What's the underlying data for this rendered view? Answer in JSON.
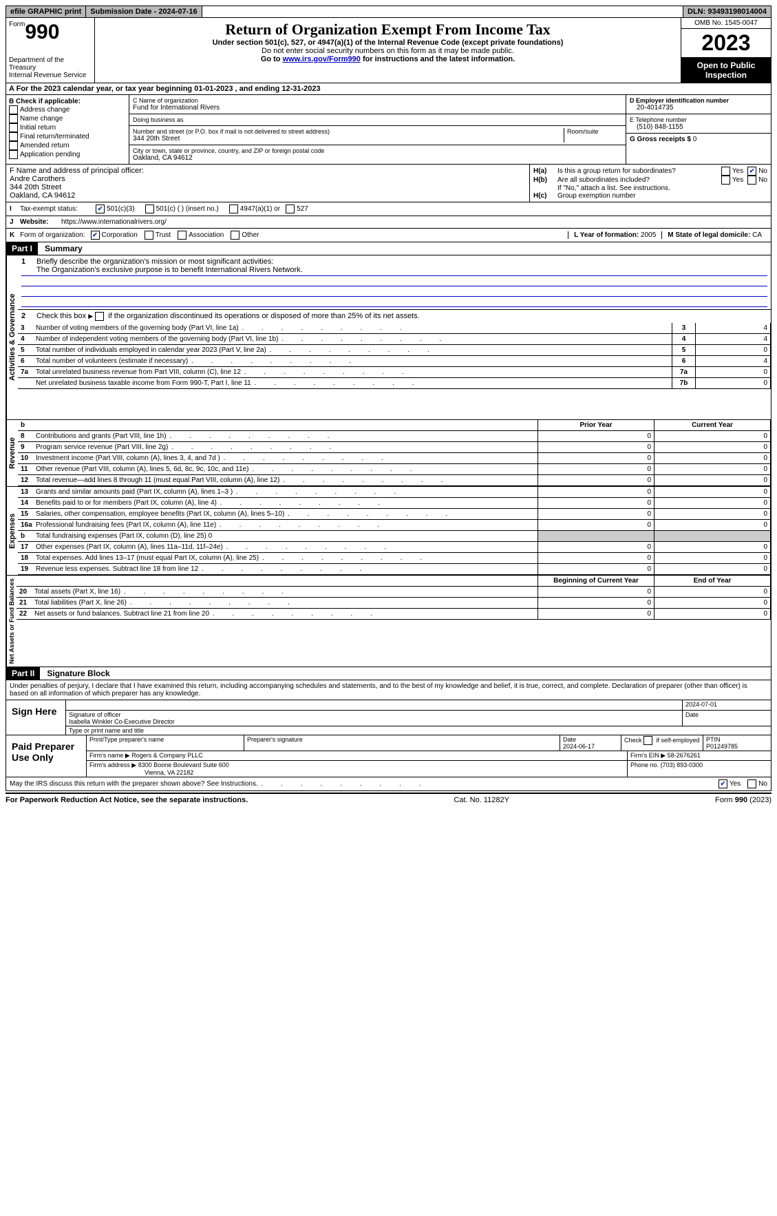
{
  "topbar": {
    "efile": "efile GRAPHIC print",
    "submission_label": "Submission Date - 2024-07-16",
    "dln_label": "DLN: 93493198014004"
  },
  "header": {
    "form_prefix": "Form",
    "form_number": "990",
    "dept": "Department of the Treasury\nInternal Revenue Service",
    "title": "Return of Organization Exempt From Income Tax",
    "sub1": "Under section 501(c), 527, or 4947(a)(1) of the Internal Revenue Code (except private foundations)",
    "sub2": "Do not enter social security numbers on this form as it may be made public.",
    "sub3_pre": "Go to ",
    "sub3_link": "www.irs.gov/Form990",
    "sub3_post": " for instructions and the latest information.",
    "omb": "OMB No. 1545-0047",
    "year": "2023",
    "open_public": "Open to Public Inspection"
  },
  "rowA": {
    "text_pre": "A   For the 2023 calendar year, or tax year beginning ",
    "begin": "01-01-2023",
    "mid": "   , and ending ",
    "end": "12-31-2023"
  },
  "boxB": {
    "header": "B Check if applicable:",
    "items": [
      "Address change",
      "Name change",
      "Initial return",
      "Final return/terminated",
      "Amended return",
      "Application pending"
    ]
  },
  "boxC": {
    "name_label": "C Name of organization",
    "org_name": "Fund for International Rivers",
    "dba_label": "Doing business as",
    "dba": "",
    "addr_label": "Number and street (or P.O. box if mail is not delivered to street address)",
    "room_label": "Room/suite",
    "addr": "344 20th Street",
    "city_label": "City or town, state or province, country, and ZIP or foreign postal code",
    "city": "Oakland, CA  94612"
  },
  "boxD": {
    "label": "D Employer identification number",
    "ein": "20-4014735"
  },
  "boxE": {
    "label": "E Telephone number",
    "phone": "(510) 848-1155"
  },
  "boxG": {
    "label": "G Gross receipts $ ",
    "val": "0"
  },
  "boxF": {
    "label": "F  Name and address of principal officer:",
    "name": "Andre Carothers",
    "addr1": "344 20th Street",
    "addr2": "Oakland, CA  94612"
  },
  "boxH": {
    "a": "Is this a group return for subordinates?",
    "b": "Are all subordinates included?",
    "b_note": "If \"No,\" attach a list. See instructions.",
    "c": "Group exemption number",
    "yes": "Yes",
    "no": "No",
    "Ha_pre": "H(a)",
    "Hb_pre": "H(b)",
    "Hc_pre": "H(c)"
  },
  "taxexempt": {
    "label_I": "I",
    "label": "Tax-exempt status:",
    "c3": "501(c)(3)",
    "c_other": "501(c) (   ) (insert no.)",
    "c4947": "4947(a)(1) or",
    "c527": "527"
  },
  "website": {
    "label_J": "J",
    "label": "Website:",
    "url": "https://www.internationalrivers.org/"
  },
  "orgform": {
    "label_K": "K",
    "label": "Form of organization:",
    "corp": "Corporation",
    "trust": "Trust",
    "assoc": "Association",
    "other": "Other",
    "L": "L Year of formation: ",
    "L_val": "2005",
    "M": "M State of legal domicile: ",
    "M_val": "CA"
  },
  "part1": {
    "num": "Part I",
    "title": "Summary",
    "vlabels": {
      "gov": "Activities & Governance",
      "rev": "Revenue",
      "exp": "Expenses",
      "net": "Net Assets or Fund Balances"
    },
    "line1": "Briefly describe the organization's mission or most significant activities:",
    "mission": "The Organization's exclusive purpose is to benefit International Rivers Network.",
    "line2": "Check this box           if the organization discontinued its operations or disposed of more than 25% of its net assets.",
    "rows_gov": [
      {
        "n": "3",
        "t": "Number of voting members of the governing body (Part VI, line 1a)",
        "k": "3",
        "v": "4"
      },
      {
        "n": "4",
        "t": "Number of independent voting members of the governing body (Part VI, line 1b)",
        "k": "4",
        "v": "4"
      },
      {
        "n": "5",
        "t": "Total number of individuals employed in calendar year 2023 (Part V, line 2a)",
        "k": "5",
        "v": "0"
      },
      {
        "n": "6",
        "t": "Total number of volunteers (estimate if necessary)",
        "k": "6",
        "v": "4"
      },
      {
        "n": "7a",
        "t": "Total unrelated business revenue from Part VIII, column (C), line 12",
        "k": "7a",
        "v": "0"
      },
      {
        "n": "",
        "t": "Net unrelated business taxable income from Form 990-T, Part I, line 11",
        "k": "7b",
        "v": "0"
      }
    ],
    "hdr_prior": "Prior Year",
    "hdr_curr": "Current Year",
    "rows_rev": [
      {
        "n": "8",
        "t": "Contributions and grants (Part VIII, line 1h)",
        "p": "0",
        "c": "0"
      },
      {
        "n": "9",
        "t": "Program service revenue (Part VIII, line 2g)",
        "p": "0",
        "c": "0"
      },
      {
        "n": "10",
        "t": "Investment income (Part VIII, column (A), lines 3, 4, and 7d )",
        "p": "0",
        "c": "0"
      },
      {
        "n": "11",
        "t": "Other revenue (Part VIII, column (A), lines 5, 6d, 8c, 9c, 10c, and 11e)",
        "p": "0",
        "c": "0"
      },
      {
        "n": "12",
        "t": "Total revenue—add lines 8 through 11 (must equal Part VIII, column (A), line 12)",
        "p": "0",
        "c": "0"
      }
    ],
    "rows_exp": [
      {
        "n": "13",
        "t": "Grants and similar amounts paid (Part IX, column (A), lines 1–3 )",
        "p": "0",
        "c": "0"
      },
      {
        "n": "14",
        "t": "Benefits paid to or for members (Part IX, column (A), line 4)",
        "p": "0",
        "c": "0"
      },
      {
        "n": "15",
        "t": "Salaries, other compensation, employee benefits (Part IX, column (A), lines 5–10)",
        "p": "0",
        "c": "0"
      },
      {
        "n": "16a",
        "t": "Professional fundraising fees (Part IX, column (A), line 11e)",
        "p": "0",
        "c": "0"
      },
      {
        "n": "b",
        "t": "Total fundraising expenses (Part IX, column (D), line 25) 0",
        "p": "",
        "c": "",
        "shade": true
      },
      {
        "n": "17",
        "t": "Other expenses (Part IX, column (A), lines 11a–11d, 11f–24e)",
        "p": "0",
        "c": "0"
      },
      {
        "n": "18",
        "t": "Total expenses. Add lines 13–17 (must equal Part IX, column (A), line 25)",
        "p": "0",
        "c": "0"
      },
      {
        "n": "19",
        "t": "Revenue less expenses. Subtract line 18 from line 12",
        "p": "0",
        "c": "0"
      }
    ],
    "hdr_begin": "Beginning of Current Year",
    "hdr_end": "End of Year",
    "rows_net": [
      {
        "n": "20",
        "t": "Total assets (Part X, line 16)",
        "p": "0",
        "c": "0"
      },
      {
        "n": "21",
        "t": "Total liabilities (Part X, line 26)",
        "p": "0",
        "c": "0"
      },
      {
        "n": "22",
        "t": "Net assets or fund balances. Subtract line 21 from line 20",
        "p": "0",
        "c": "0"
      }
    ]
  },
  "part2": {
    "num": "Part II",
    "title": "Signature Block",
    "decl": "Under penalties of perjury, I declare that I have examined this return, including accompanying schedules and statements, and to the best of my knowledge and belief, it is true, correct, and complete. Declaration of preparer (other than officer) is based on all information of which preparer has any knowledge."
  },
  "sign": {
    "here": "Sign Here",
    "sig_officer": "Signature of officer",
    "officer_name": "Isabella Winkler",
    "officer_title": "Co-Executive Director",
    "date_label": "Date",
    "date": "2024-07-01",
    "type_label": "Type or print name and title"
  },
  "preparer": {
    "label": "Paid Preparer Use Only",
    "print_label": "Print/Type preparer's name",
    "sig_label": "Preparer's signature",
    "date_label": "Date",
    "date": "2024-06-17",
    "check_label": "Check          if self-employed",
    "ptin_label": "PTIN",
    "ptin": "P01249785",
    "firm_name_label": "Firm's name",
    "firm_name": "Rogers & Company PLLC",
    "firm_ein_label": "Firm's EIN",
    "firm_ein": "58-2676261",
    "firm_addr_label": "Firm's address",
    "firm_addr1": "8300 Boone Boulevard Suite 600",
    "firm_addr2": "Vienna, VA  22182",
    "phone_label": "Phone no.",
    "phone": "(703) 893-0300"
  },
  "discuss": {
    "text": "May the IRS discuss this return with the preparer shown above? See Instructions.",
    "yes": "Yes",
    "no": "No"
  },
  "footer": {
    "left": "For Paperwork Reduction Act Notice, see the separate instructions.",
    "mid": "Cat. No. 11282Y",
    "right_pre": "Form ",
    "right_form": "990",
    "right_post": " (2023)"
  }
}
